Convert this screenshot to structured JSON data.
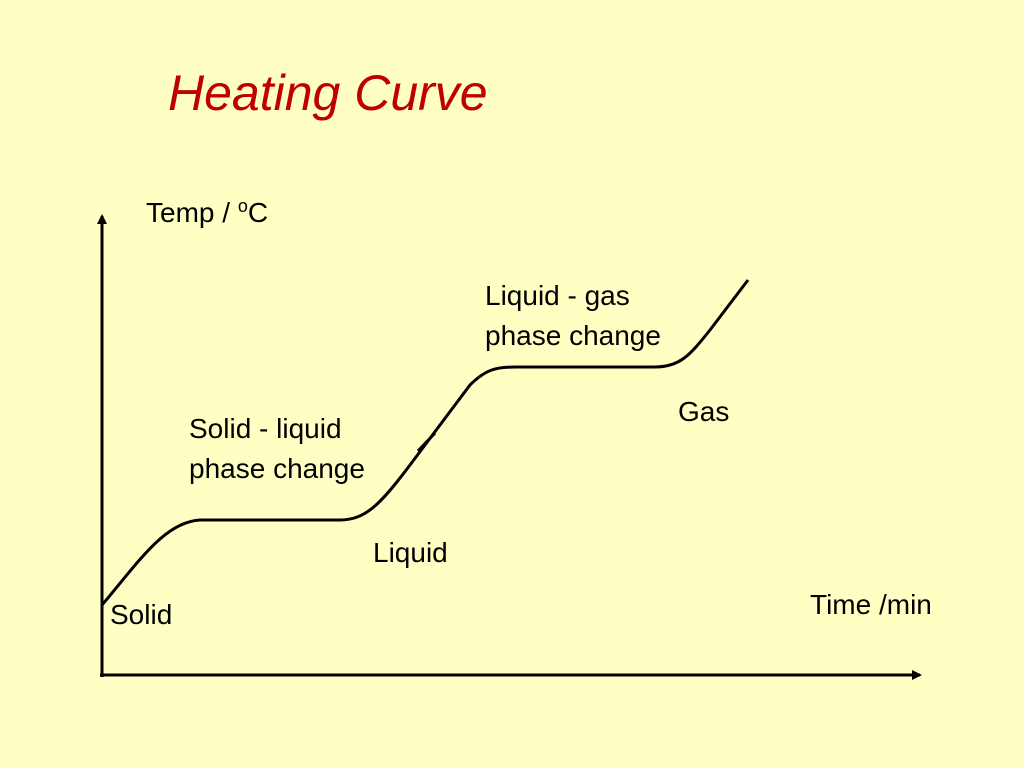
{
  "title": "Heating Curve",
  "y_axis": {
    "label_parts": [
      "Temp / ",
      "o",
      "C"
    ]
  },
  "x_axis": {
    "label": "Time /min"
  },
  "regions": [
    {
      "lines": [
        "Solid"
      ]
    },
    {
      "lines": [
        "Solid - liquid",
        "phase change"
      ]
    },
    {
      "lines": [
        "Liquid"
      ]
    },
    {
      "lines": [
        "Liquid - gas",
        "phase change"
      ]
    },
    {
      "lines": [
        "Gas"
      ]
    }
  ]
}
